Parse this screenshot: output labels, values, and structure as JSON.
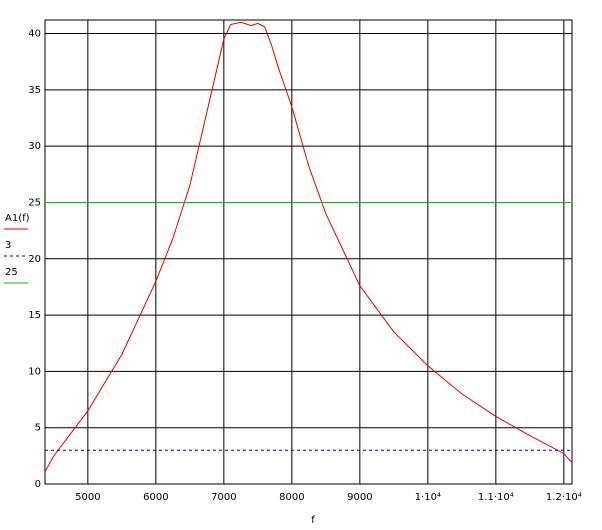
{
  "chart_data": {
    "type": "line",
    "x_label": "f",
    "x": [
      4370,
      4500,
      5000,
      5500,
      6000,
      6250,
      6500,
      6750,
      7000,
      7100,
      7250,
      7400,
      7500,
      7600,
      7700,
      7800,
      8000,
      8250,
      8500,
      9000,
      9500,
      10000,
      10500,
      11000,
      11500,
      12000,
      12120
    ],
    "series": [
      {
        "name": "A1(f)",
        "color": "#e00000",
        "dash": "solid",
        "values": [
          1.1,
          2.5,
          6.5,
          11.5,
          18,
          21.8,
          26.5,
          33,
          39.5,
          40.8,
          41,
          40.7,
          40.9,
          40.6,
          39,
          37,
          33.5,
          28.2,
          24,
          17.6,
          13.5,
          10.5,
          8,
          6,
          4.3,
          2.7,
          1.9
        ]
      },
      {
        "name": "3",
        "color": "#0000c0",
        "dash": "dashed",
        "x": [
          4370,
          12120
        ],
        "values": [
          3,
          3
        ]
      },
      {
        "name": "25",
        "color": "#00c000",
        "dash": "solid",
        "x": [
          4370,
          12120
        ],
        "values": [
          25,
          25
        ]
      }
    ],
    "xlim": [
      4370,
      12120
    ],
    "ylim": [
      0,
      41.2
    ],
    "xticks": [
      5000,
      6000,
      7000,
      8000,
      9000,
      {
        "value": 10000,
        "label": "1·10⁴"
      },
      {
        "value": 11000,
        "label": "1.1·10⁴"
      },
      {
        "value": 12000,
        "label": "1.2·10⁴"
      }
    ],
    "yticks": [
      0,
      5,
      10,
      15,
      20,
      25,
      30,
      35,
      40
    ],
    "grid": true
  }
}
